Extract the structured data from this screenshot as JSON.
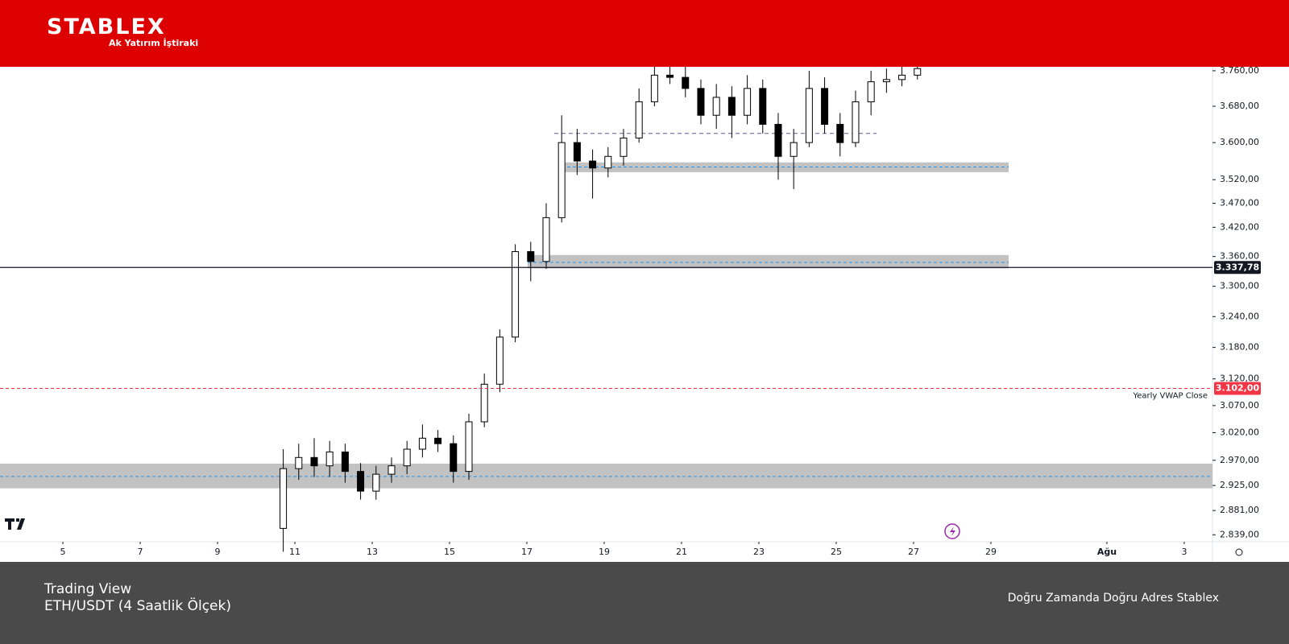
{
  "header": {
    "logo": "STABLEX",
    "subtitle": "Ak Yatırım İştiraki"
  },
  "footer": {
    "source": "Trading View",
    "instrument": "ETH/USDT (4 Saatlik Ölçek)",
    "slogan": "Doğru Zamanda Doğru Adres Stablex"
  },
  "chart_data": {
    "type": "candlestick",
    "log_scale": true,
    "xlim": [
      3.375,
      34.73
    ],
    "ylim": [
      2827,
      3769
    ],
    "xticks": [
      5,
      7,
      9,
      11,
      13,
      15,
      17,
      19,
      21,
      23,
      25,
      27,
      29,
      {
        "value": 32,
        "label": "Ağu"
      },
      {
        "value": 34,
        "label": "3"
      }
    ],
    "yticks": [
      {
        "value": 3760,
        "label": "3.760,00"
      },
      {
        "value": 3680,
        "label": "3.680,00"
      },
      {
        "value": 3600,
        "label": "3.600,00"
      },
      {
        "value": 3520,
        "label": "3.520,00"
      },
      {
        "value": 3470,
        "label": "3.470,00"
      },
      {
        "value": 3420,
        "label": "3.420,00"
      },
      {
        "value": 3360,
        "label": "3.360,00"
      },
      {
        "value": 3300,
        "label": "3.300,00"
      },
      {
        "value": 3240,
        "label": "3.240,00"
      },
      {
        "value": 3180,
        "label": "3.180,00"
      },
      {
        "value": 3120,
        "label": "3.120,00"
      },
      {
        "value": 3070,
        "label": "3.070,00"
      },
      {
        "value": 3020,
        "label": "3.020,00"
      },
      {
        "value": 2970,
        "label": "2.970,00"
      },
      {
        "value": 2925,
        "label": "2.925,00"
      },
      {
        "value": 2881,
        "label": "2.881,00"
      },
      {
        "value": 2839,
        "label": "2.839,00"
      }
    ],
    "x": [
      10.7,
      11.1,
      11.5,
      11.9,
      12.3,
      12.7,
      13.1,
      13.5,
      13.9,
      14.3,
      14.7,
      15.1,
      15.5,
      15.9,
      16.3,
      16.7,
      17.1,
      17.5,
      17.9,
      18.3,
      18.7,
      19.1,
      19.5,
      19.9,
      20.3,
      20.7,
      21.1,
      21.5,
      21.9,
      22.3,
      22.7,
      23.1,
      23.5,
      23.9,
      24.3,
      24.7,
      25.1,
      25.5,
      25.9,
      26.3,
      26.7,
      27.1
    ],
    "open": [
      2850,
      2955,
      2975,
      2960,
      2985,
      2950,
      2915,
      2945,
      2960,
      2990,
      3010,
      3000,
      2950,
      3040,
      3110,
      3200,
      3370,
      3350,
      3440,
      3600,
      3560,
      3545,
      3570,
      3610,
      3690,
      3750,
      3745,
      3720,
      3660,
      3700,
      3660,
      3720,
      3640,
      3570,
      3600,
      3720,
      3640,
      3600,
      3690,
      3735,
      3740,
      3750
    ],
    "high": [
      2990,
      3000,
      3010,
      3005,
      3000,
      2965,
      2960,
      2975,
      3005,
      3035,
      3025,
      3015,
      3055,
      3130,
      3215,
      3385,
      3390,
      3470,
      3660,
      3630,
      3585,
      3590,
      3630,
      3720,
      3775,
      3775,
      3770,
      3740,
      3730,
      3725,
      3750,
      3740,
      3665,
      3630,
      3760,
      3745,
      3665,
      3715,
      3760,
      3765,
      3770,
      3775
    ],
    "low": [
      2810,
      2935,
      2940,
      2940,
      2930,
      2900,
      2900,
      2930,
      2945,
      2975,
      2985,
      2930,
      2935,
      3030,
      3095,
      3190,
      3310,
      3335,
      3430,
      3530,
      3480,
      3525,
      3550,
      3600,
      3680,
      3730,
      3700,
      3640,
      3630,
      3610,
      3640,
      3620,
      3520,
      3500,
      3590,
      3620,
      3570,
      3590,
      3660,
      3710,
      3725,
      3740
    ],
    "close": [
      2955,
      2975,
      2960,
      2985,
      2950,
      2915,
      2945,
      2960,
      2990,
      3010,
      3000,
      2950,
      3040,
      3110,
      3200,
      3370,
      3350,
      3440,
      3600,
      3560,
      3545,
      3570,
      3610,
      3690,
      3750,
      3745,
      3720,
      3660,
      3700,
      3660,
      3720,
      3640,
      3570,
      3600,
      3720,
      3640,
      3600,
      3690,
      3735,
      3740,
      3750,
      3765
    ],
    "up_color": "#ffffff",
    "down_color": "#000000",
    "zones": [
      {
        "low": 3536,
        "high": 3557,
        "mid": 3547
      },
      {
        "low": 3336,
        "high": 3363,
        "mid": 3348
      },
      {
        "low": 2920,
        "high": 2964,
        "mid": 2941
      }
    ],
    "range_line": 3620,
    "price_line": {
      "value": 3337.78,
      "label": "3.337,78",
      "color": "#131722"
    },
    "vwap_line": {
      "value": 3102,
      "label": "3.102,00",
      "name": "Yearly VWAP Close",
      "color": "#f23645"
    }
  }
}
